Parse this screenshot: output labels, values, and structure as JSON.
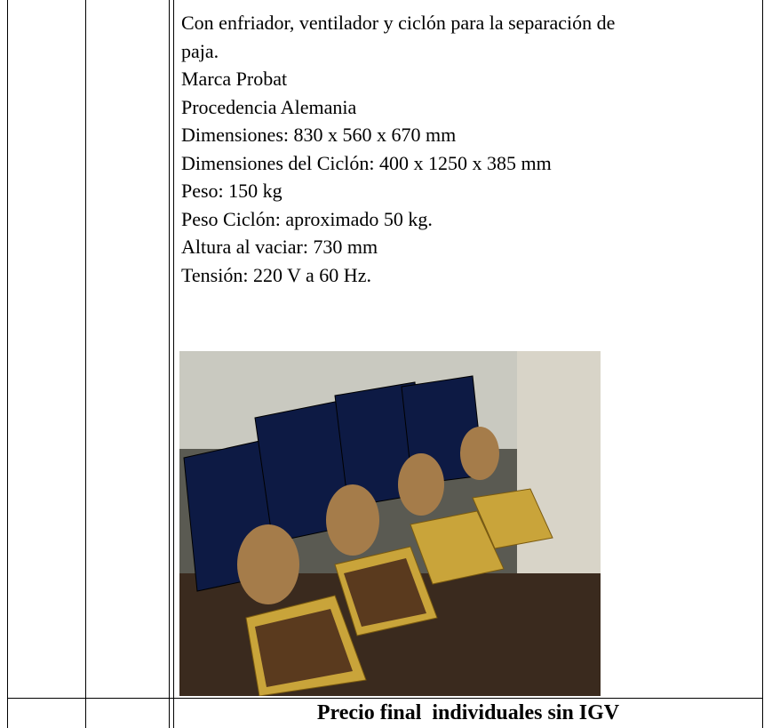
{
  "description": {
    "lines": [
      "Con enfriador, ventilador y ciclón para la separación de",
      "paja.",
      "Marca Probat",
      "Procedencia Alemania",
      "Dimensiones: 830 x 560 x 670 mm",
      "Dimensiones del Ciclón: 400 x 1250 x 385 mm",
      "Peso: 150 kg",
      "Peso Ciclón: aproximado 50 kg.",
      "Altura al vaciar: 730 mm",
      "Tensión: 220 V a 60 Hz."
    ]
  },
  "footer_row": {
    "text": "Precio final  individuales sin IGV"
  }
}
